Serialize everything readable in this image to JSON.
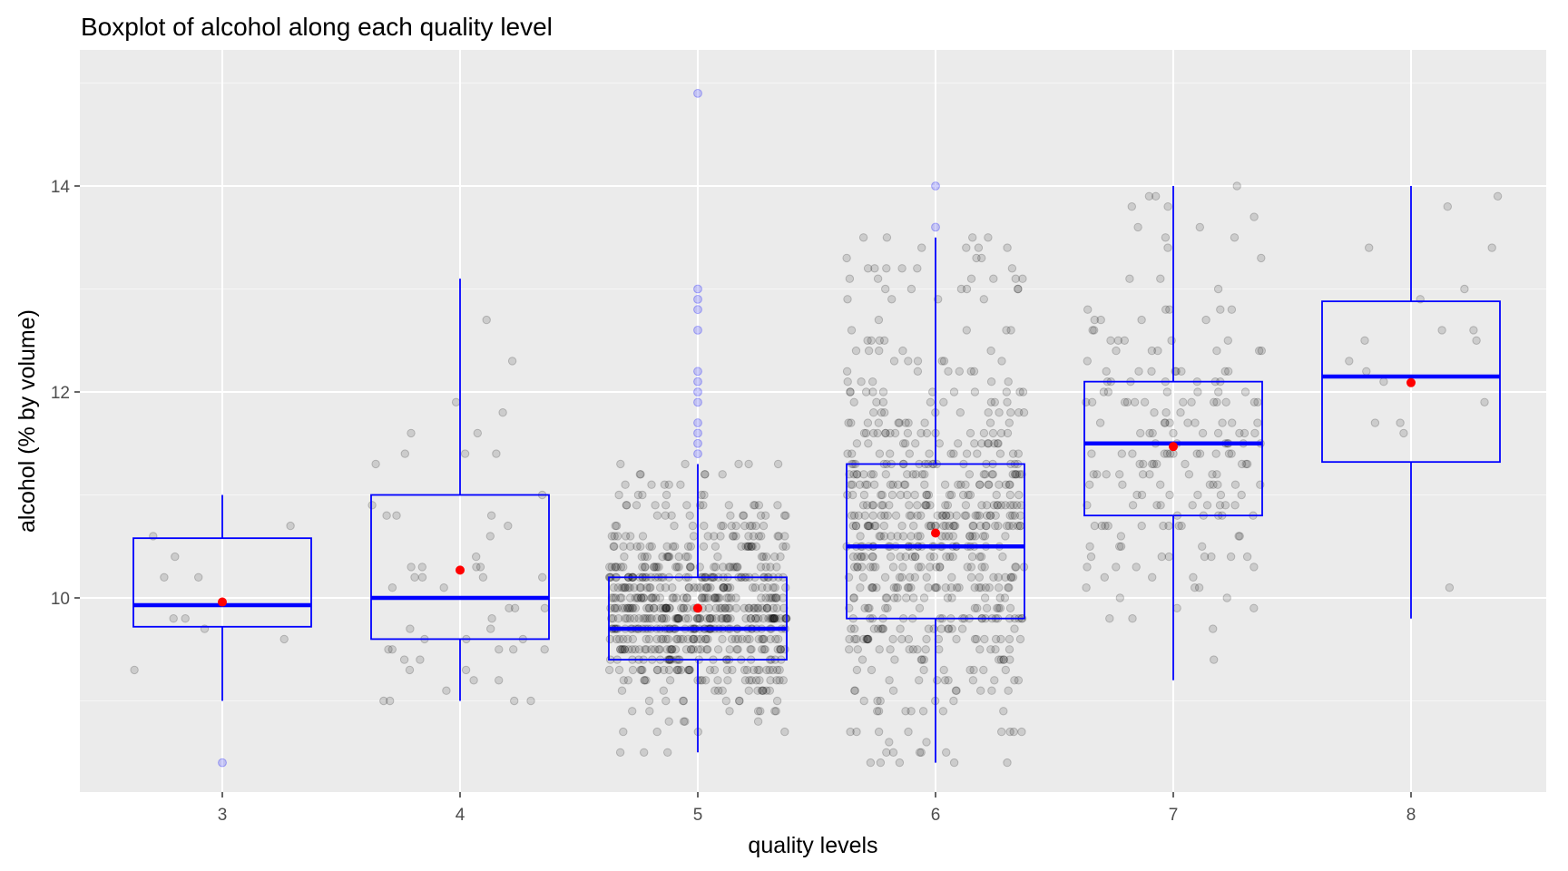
{
  "chart_data": {
    "type": "box",
    "title": "Boxplot of alcohol along each quality level",
    "xlabel": "quality levels",
    "ylabel": "alcohol (% by volume)",
    "ylim": [
      8.0,
      15.1
    ],
    "y_ticks": [
      10,
      12,
      14
    ],
    "y_minor_ticks": [
      9,
      11,
      13,
      15
    ],
    "grid": true,
    "categories": [
      "3",
      "4",
      "5",
      "6",
      "7",
      "8"
    ],
    "colors": {
      "panel_bg": "#ebebeb",
      "grid": "#ffffff",
      "box": "#0000ff",
      "mean": "#ff0000",
      "jitter_point": "#000000",
      "outlier": "#0000ff"
    },
    "boxes": [
      {
        "category": "3",
        "whisker_low": 9.0,
        "q1": 9.72,
        "median": 9.93,
        "q3": 10.58,
        "whisker_high": 11.0,
        "mean": 9.96,
        "outliers": [
          8.4
        ]
      },
      {
        "category": "4",
        "whisker_low": 9.0,
        "q1": 9.6,
        "median": 10.0,
        "q3": 11.0,
        "whisker_high": 13.1,
        "mean": 10.27,
        "outliers": []
      },
      {
        "category": "5",
        "whisker_low": 8.5,
        "q1": 9.4,
        "median": 9.7,
        "q3": 10.2,
        "whisker_high": 11.3,
        "mean": 9.9,
        "outliers": [
          11.4,
          11.5,
          11.6,
          11.7,
          11.9,
          12.0,
          12.1,
          12.2,
          12.6,
          12.8,
          12.9,
          13.0,
          14.9
        ]
      },
      {
        "category": "6",
        "whisker_low": 8.4,
        "q1": 9.8,
        "median": 10.5,
        "q3": 11.3,
        "whisker_high": 13.5,
        "mean": 10.63,
        "outliers": [
          13.6,
          14.0
        ]
      },
      {
        "category": "7",
        "whisker_low": 9.2,
        "q1": 10.8,
        "median": 11.5,
        "q3": 12.1,
        "whisker_high": 14.0,
        "mean": 11.47,
        "outliers": []
      },
      {
        "category": "8",
        "whisker_low": 9.8,
        "q1": 11.32,
        "median": 12.15,
        "q3": 12.88,
        "whisker_high": 14.0,
        "mean": 12.09,
        "outliers": []
      }
    ],
    "jitter_counts": {
      "3": 10,
      "4": 53,
      "5": 681,
      "6": 638,
      "7": 199,
      "8": 18
    }
  }
}
